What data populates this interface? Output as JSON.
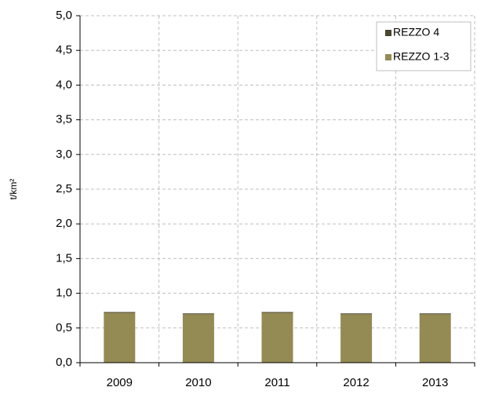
{
  "chart_data": {
    "type": "stacked_bar",
    "y_label": "t/km²",
    "categories": [
      "2009",
      "2010",
      "2011",
      "2012",
      "2013"
    ],
    "series": [
      {
        "name": "REZZO 1-3",
        "color": "#948a54",
        "values": [
          0.72,
          0.7,
          0.72,
          0.7,
          0.7
        ]
      },
      {
        "name": "REZZO 4",
        "color": "#4a4530",
        "values": [
          0.01,
          0.01,
          0.01,
          0.01,
          0.01
        ]
      }
    ],
    "ylim": [
      0,
      5
    ],
    "yticks": [
      {
        "value": 0,
        "label": "0,0"
      },
      {
        "value": 0.5,
        "label": "0,5"
      },
      {
        "value": 1,
        "label": "1,0"
      },
      {
        "value": 1.5,
        "label": "1,5"
      },
      {
        "value": 2,
        "label": "2,0"
      },
      {
        "value": 2.5,
        "label": "2,5"
      },
      {
        "value": 3,
        "label": "3,0"
      },
      {
        "value": 3.5,
        "label": "3,5"
      },
      {
        "value": 4,
        "label": "4,0"
      },
      {
        "value": 4.5,
        "label": "4,5"
      },
      {
        "value": 5,
        "label": "5,0"
      }
    ],
    "grid": true,
    "legend": "top-right"
  }
}
